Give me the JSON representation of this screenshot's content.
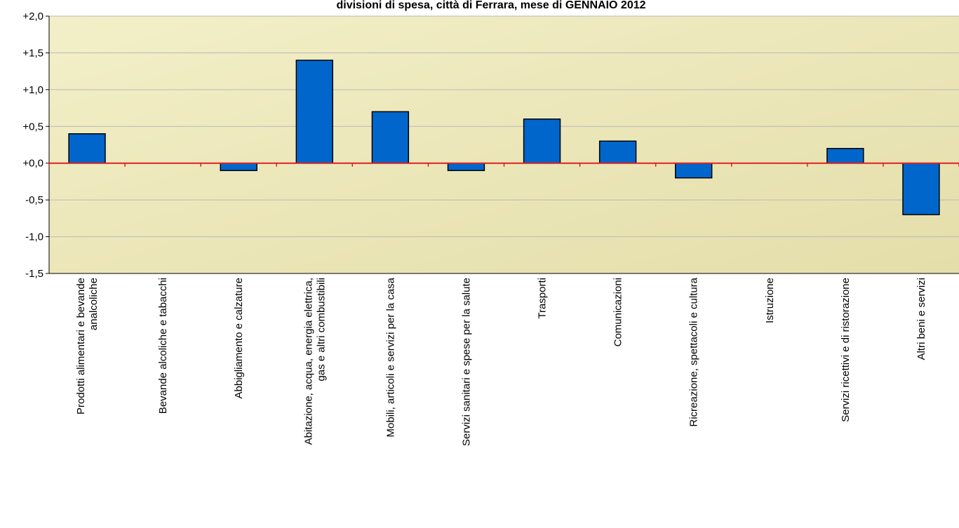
{
  "chart_data": {
    "type": "bar",
    "title": "divisioni di spesa, città di Ferrara, mese di GENNAIO 2012",
    "xlabel": "",
    "ylabel": "",
    "ylim": [
      -1.5,
      2.0
    ],
    "yticks": [
      "+2,0",
      "+1,5",
      "+1,0",
      "+0,5",
      "+0,0",
      "-0,5",
      "-1,0",
      "-1,5"
    ],
    "grid": true,
    "categories": [
      [
        "Prodotti alimentari e bevande",
        "analcoliche"
      ],
      [
        "Bevande alcoliche e tabacchi"
      ],
      [
        "Abbigliamento e calzature"
      ],
      [
        "Abitazione, acqua, energia elettrica,",
        "gas e altri combustibili"
      ],
      [
        "Mobili, articoli e servizi per la casa"
      ],
      [
        "Servizi sanitari e spese per la salute"
      ],
      [
        "Trasporti"
      ],
      [
        "Comunicazioni"
      ],
      [
        "Ricreazione, spettacoli e cultura"
      ],
      [
        "Istruzione"
      ],
      [
        "Servizi ricettivi e di ristorazione"
      ],
      [
        "Altri beni e servizi"
      ]
    ],
    "values": [
      0.4,
      0.0,
      -0.1,
      1.4,
      0.7,
      -0.1,
      0.6,
      0.3,
      -0.2,
      0.0,
      0.2,
      -0.7
    ],
    "colors": {
      "bar": "#0066CC",
      "bar_stroke": "#000000",
      "zero_line": "#E02020",
      "plot_bg_start": "#F3EFC8",
      "plot_bg_end": "#E4DEAA",
      "grid": "#B8B8B8"
    }
  }
}
